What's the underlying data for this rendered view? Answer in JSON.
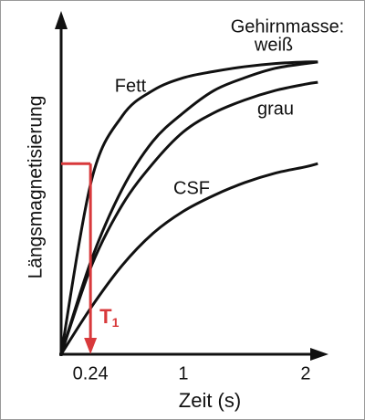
{
  "chart_data": {
    "type": "line",
    "x_label": "Zeit (s)",
    "y_label": "Längsmagnetisierung",
    "legend_title": "Gehirnmasse:",
    "x": [
      0,
      0.25,
      0.5,
      0.75,
      1,
      1.25,
      1.5,
      1.75,
      2,
      2.1
    ],
    "series": [
      {
        "name": "Fett",
        "color": "#111111",
        "values": [
          0,
          0.55,
          0.75,
          0.83,
          0.87,
          0.89,
          0.905,
          0.915,
          0.92,
          0.92
        ]
      },
      {
        "name": "weiß",
        "color": "#111111",
        "values": [
          0,
          0.3,
          0.52,
          0.67,
          0.76,
          0.83,
          0.87,
          0.9,
          0.915,
          0.92
        ]
      },
      {
        "name": "grau",
        "color": "#111111",
        "values": [
          0,
          0.28,
          0.47,
          0.6,
          0.7,
          0.76,
          0.8,
          0.83,
          0.85,
          0.856
        ]
      },
      {
        "name": "CSF",
        "color": "#111111",
        "values": [
          0,
          0.15,
          0.28,
          0.38,
          0.45,
          0.5,
          0.54,
          0.57,
          0.59,
          0.6
        ]
      }
    ],
    "xlim": [
      0,
      2.15
    ],
    "ylim": [
      0,
      1
    ],
    "xticks": [
      0.24,
      1,
      2
    ],
    "t1_marker": {
      "x": 0.24,
      "y": 0.6,
      "color": "#d8393b",
      "text": "T",
      "subscript": "1"
    }
  }
}
